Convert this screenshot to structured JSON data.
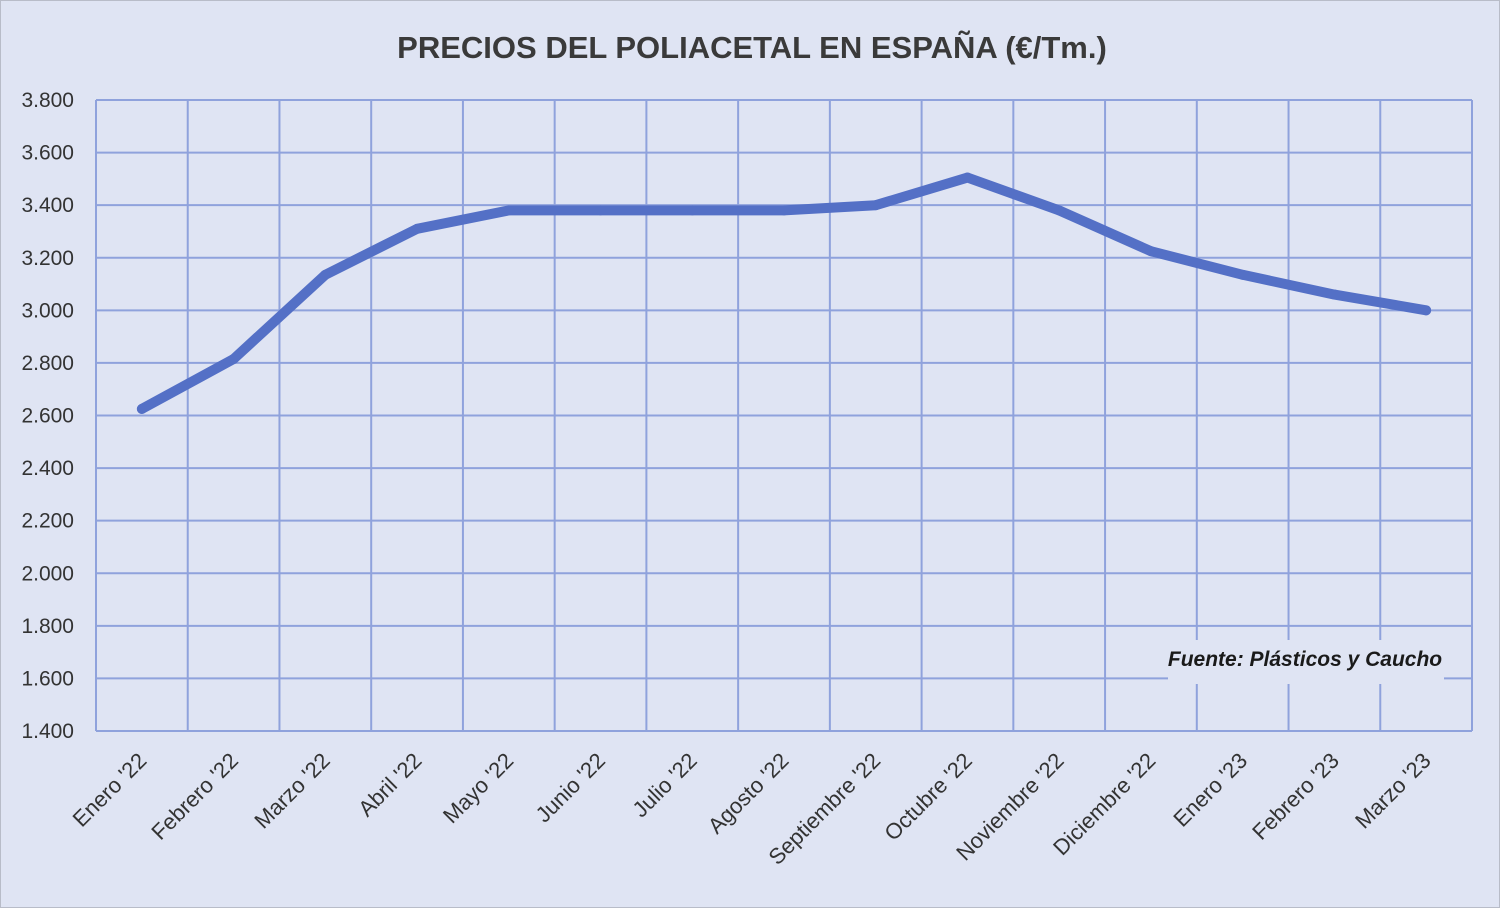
{
  "chart_data": {
    "type": "line",
    "title": "PRECIOS DEL POLIACETAL  EN ESPAÑA (€/Tm.)",
    "xlabel": "",
    "ylabel": "",
    "categories": [
      "Enero '22",
      "Febrero '22",
      "Marzo '22",
      "Abril '22",
      "Mayo '22",
      "Junio '22",
      "Julio '22",
      "Agosto '22",
      "Septiembre '22",
      "Octubre '22",
      "Noviembre '22",
      "Diciembre '22",
      "Enero '23",
      "Febrero '23",
      "Marzo '23"
    ],
    "series": [
      {
        "values": [
          2625,
          2815,
          3135,
          3310,
          3380,
          3380,
          3380,
          3380,
          3400,
          3505,
          3380,
          3225,
          3135,
          3060,
          3000
        ]
      }
    ],
    "ylim": [
      1400,
      3800
    ],
    "ytick_step": 200,
    "ytick_labels": [
      "1.400",
      "1.600",
      "1.800",
      "2.000",
      "2.200",
      "2.400",
      "2.600",
      "2.800",
      "3.000",
      "3.200",
      "3.400",
      "3.600",
      "3.800"
    ],
    "grid": true,
    "legend": "none",
    "annotation": "Fuente: Plásticos y Caucho",
    "colors": {
      "line": "#5470c6",
      "grid": "#8fa2dc",
      "background": "#dfe4f3"
    }
  }
}
